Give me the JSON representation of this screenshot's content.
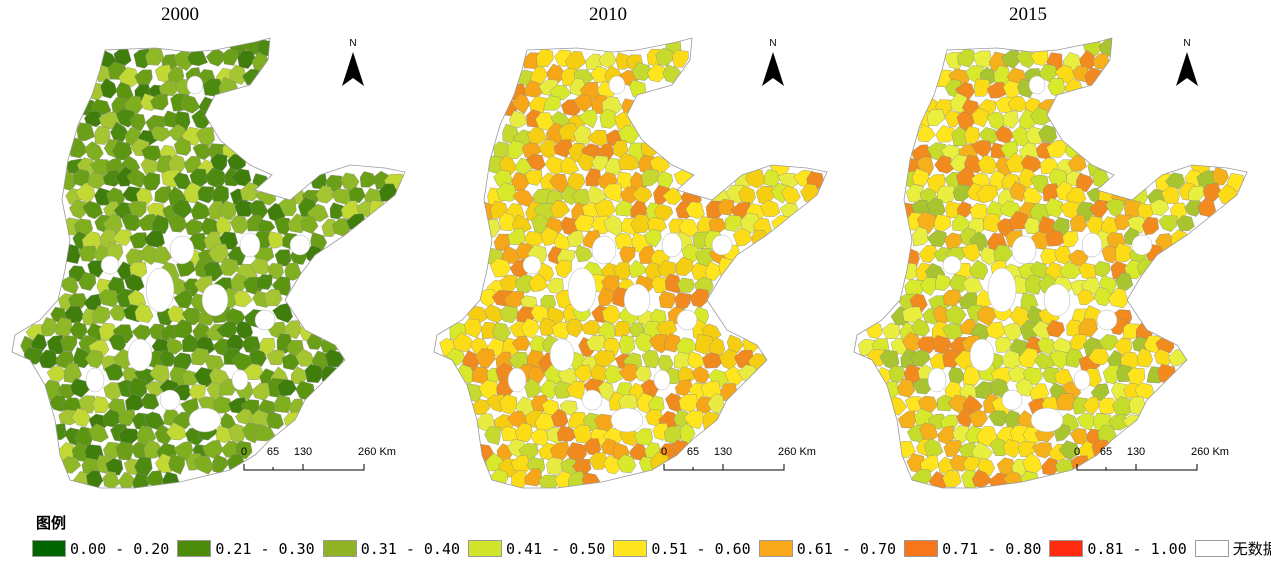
{
  "maps": [
    {
      "title": "2000",
      "palette": [
        "#3f7e0a",
        "#4d8b10",
        "#5c9510",
        "#6b9f17",
        "#7fae1e",
        "#8fb926",
        "#a5c531",
        "#c2d934"
      ]
    },
    {
      "title": "2010",
      "palette": [
        "#d8e82a",
        "#ffe51e",
        "#fbdb16",
        "#f5ce12",
        "#f6a617",
        "#f18a1e",
        "#c6d92e",
        "#e9ec40"
      ]
    },
    {
      "title": "2015",
      "palette": [
        "#c6dc2b",
        "#d8e82a",
        "#ffe51e",
        "#f6b01a",
        "#f38a1d",
        "#fbdb16",
        "#a8c42f",
        "#e9ef3e"
      ]
    }
  ],
  "north_arrow": {
    "label": "N"
  },
  "scalebar": {
    "ticks": [
      "0",
      "65",
      "130",
      "260 Km"
    ]
  },
  "legend": {
    "title": "图例",
    "items": [
      {
        "label": "0.00 - 0.20",
        "color": "#006400"
      },
      {
        "label": "0.21 - 0.30",
        "color": "#4c8c0a"
      },
      {
        "label": "0.31 - 0.40",
        "color": "#8fb324"
      },
      {
        "label": "0.41 - 0.50",
        "color": "#d2e52d"
      },
      {
        "label": "0.51 - 0.60",
        "color": "#ffe51e"
      },
      {
        "label": "0.61 - 0.70",
        "color": "#f9a91a"
      },
      {
        "label": "0.71 - 0.80",
        "color": "#f7761b"
      },
      {
        "label": "0.81 - 1.00",
        "color": "#ff2a10"
      },
      {
        "label": "无数据",
        "color": "#ffffff"
      }
    ]
  }
}
